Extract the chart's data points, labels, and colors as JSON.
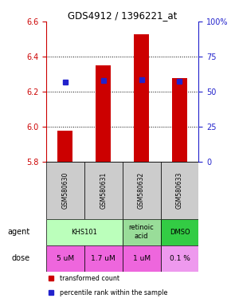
{
  "title": "GDS4912 / 1396221_at",
  "samples": [
    "GSM580630",
    "GSM580631",
    "GSM580632",
    "GSM580633"
  ],
  "bar_values": [
    5.975,
    6.35,
    6.525,
    6.275
  ],
  "bar_bottom": 5.8,
  "percentile_values": [
    6.255,
    6.265,
    6.27,
    6.26
  ],
  "ylim": [
    5.8,
    6.6
  ],
  "yticks_left": [
    5.8,
    6.0,
    6.2,
    6.4,
    6.6
  ],
  "yticks_right": [
    0,
    25,
    50,
    75,
    100
  ],
  "ytick_right_labels": [
    "0",
    "25",
    "50",
    "75",
    "100%"
  ],
  "bar_color": "#cc0000",
  "percentile_color": "#2222cc",
  "agent_groups": [
    {
      "span": [
        0,
        2
      ],
      "label": "KHS101",
      "color": "#bbffbb"
    },
    {
      "span": [
        2,
        3
      ],
      "label": "retinoic\nacid",
      "color": "#99dd99"
    },
    {
      "span": [
        3,
        4
      ],
      "label": "DMSO",
      "color": "#33cc44"
    }
  ],
  "dose_labels": [
    "5 uM",
    "1.7 uM",
    "1 uM",
    "0.1 %"
  ],
  "dose_colors": [
    "#ee66dd",
    "#ee66dd",
    "#ee66dd",
    "#ee99ee"
  ],
  "sample_bg_color": "#cccccc",
  "grid_lines": [
    6.0,
    6.2,
    6.4
  ],
  "legend_red_label": "transformed count",
  "legend_blue_label": "percentile rank within the sample"
}
